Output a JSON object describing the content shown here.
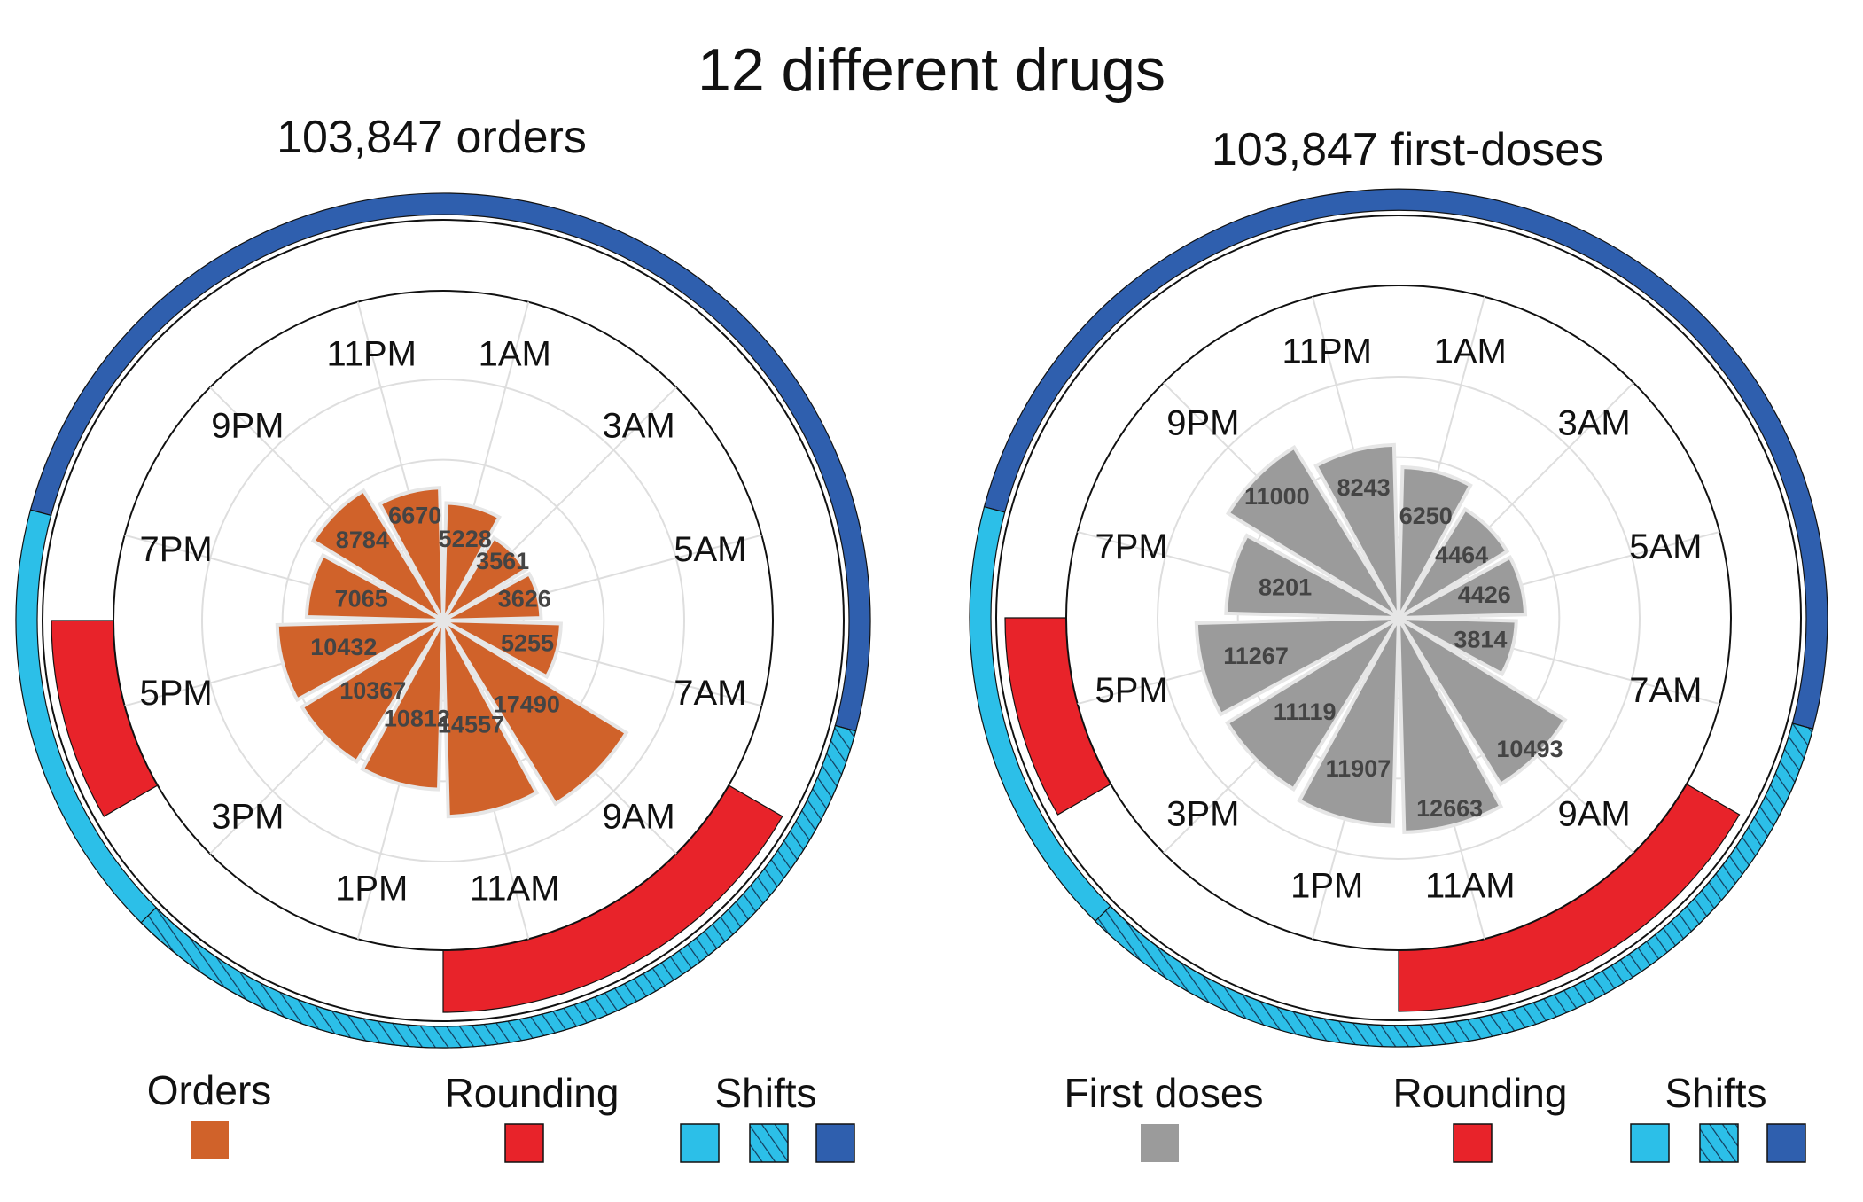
{
  "title": "12 different drugs",
  "colors": {
    "orders": "#d0622a",
    "first_doses": "#9b9b9b",
    "rounding": "#e8232a",
    "shift_light": "#2cbfe8",
    "shift_dark": "#2f5fae",
    "grid": "#dedede"
  },
  "hour_labels": [
    "11PM",
    "1AM",
    "3AM",
    "5AM",
    "7AM",
    "9AM",
    "11AM",
    "1PM",
    "3PM",
    "5PM",
    "7PM",
    "9PM"
  ],
  "shifts": {
    "dark": {
      "from": "7PM",
      "to": "7AM"
    },
    "light": {
      "from": "7AM",
      "to": "7PM"
    }
  },
  "rounding": {
    "window_1": {
      "from": "8AM",
      "to": "12PM"
    },
    "window_2": {
      "from": "4PM",
      "to": "6PM"
    }
  },
  "chart_data": [
    {
      "type": "polar-bar",
      "subtitle": "103,847 orders",
      "series": "Orders",
      "bins": [
        "12AM–2AM",
        "2AM–4AM",
        "4AM–6AM",
        "6AM–8AM",
        "8AM–10AM",
        "10AM–12PM",
        "12PM–2PM",
        "2PM–4PM",
        "4PM–6PM",
        "6PM–8PM",
        "8PM–10PM",
        "10PM–12AM"
      ],
      "values": [
        5228,
        3561,
        3626,
        5255,
        17490,
        14557,
        10812,
        10367,
        10432,
        7065,
        8784,
        6670
      ],
      "rmax": 22000,
      "grid": true
    },
    {
      "type": "polar-bar",
      "subtitle": "103,847 first-doses",
      "series": "First doses",
      "bins": [
        "12AM–2AM",
        "2AM–4AM",
        "4AM–6AM",
        "6AM–8AM",
        "8AM–10AM",
        "10AM–12PM",
        "12PM–2PM",
        "2PM–4PM",
        "4PM–6PM",
        "6PM–8PM",
        "8PM–10PM",
        "10PM–12AM"
      ],
      "values": [
        6250,
        4464,
        4426,
        3814,
        10493,
        12663,
        11907,
        11119,
        11267,
        8201,
        11000,
        8243
      ],
      "rmax": 16000,
      "grid": true
    }
  ],
  "legends": [
    {
      "series_label": "Orders",
      "rounding_label": "Rounding",
      "shifts_label": "Shifts"
    },
    {
      "series_label": "First doses",
      "rounding_label": "Rounding",
      "shifts_label": "Shifts"
    }
  ]
}
